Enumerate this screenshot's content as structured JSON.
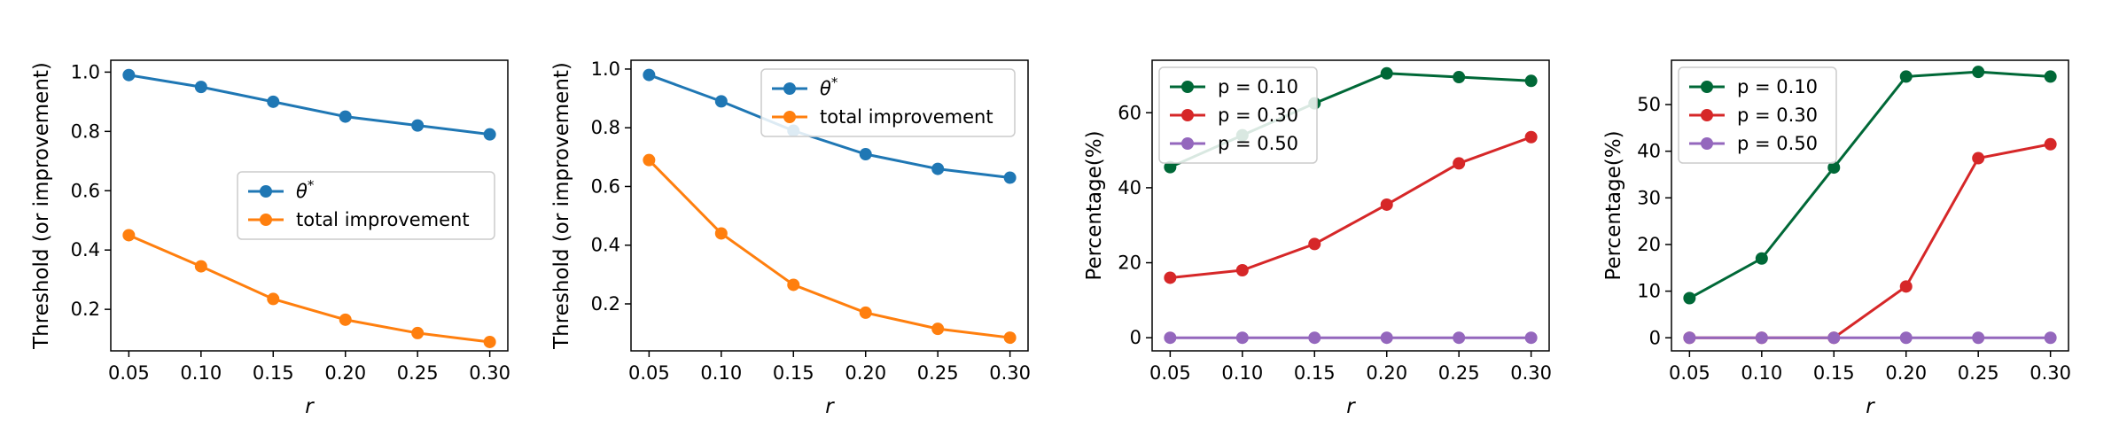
{
  "chart_data": [
    {
      "type": "line",
      "x": [
        0.05,
        0.1,
        0.15,
        0.2,
        0.25,
        0.3
      ],
      "x_tick_labels": [
        "0.05",
        "0.10",
        "0.15",
        "0.20",
        "0.25",
        "0.30"
      ],
      "xlabel": "r",
      "ylabel": "Threshold (or improvement)",
      "ylim": [
        0.06,
        1.04
      ],
      "y_ticks": [
        0.2,
        0.4,
        0.6,
        0.8,
        1.0
      ],
      "y_tick_labels": [
        "0.2",
        "0.4",
        "0.6",
        "0.8",
        "1.0"
      ],
      "legend_position": "center-right",
      "grid": false,
      "series": [
        {
          "name": "θ*",
          "name_main": "θ",
          "name_sup": "*",
          "color": "#1f77b4",
          "values": [
            0.99,
            0.95,
            0.9,
            0.85,
            0.82,
            0.79
          ]
        },
        {
          "name": "total improvement",
          "color": "#ff7f0e",
          "values": [
            0.45,
            0.345,
            0.235,
            0.165,
            0.12,
            0.09
          ]
        }
      ]
    },
    {
      "type": "line",
      "x": [
        0.05,
        0.1,
        0.15,
        0.2,
        0.25,
        0.3
      ],
      "x_tick_labels": [
        "0.05",
        "0.10",
        "0.15",
        "0.20",
        "0.25",
        "0.30"
      ],
      "xlabel": "r",
      "ylabel": "Threshold (or improvement)",
      "ylim": [
        0.04,
        1.03
      ],
      "y_ticks": [
        0.2,
        0.4,
        0.6,
        0.8,
        1.0
      ],
      "y_tick_labels": [
        "0.2",
        "0.4",
        "0.6",
        "0.8",
        "1.0"
      ],
      "legend_position": "upper-right",
      "grid": false,
      "series": [
        {
          "name": "θ*",
          "name_main": "θ",
          "name_sup": "*",
          "color": "#1f77b4",
          "values": [
            0.98,
            0.89,
            0.79,
            0.71,
            0.66,
            0.63
          ]
        },
        {
          "name": "total improvement",
          "color": "#ff7f0e",
          "values": [
            0.69,
            0.44,
            0.265,
            0.17,
            0.115,
            0.085
          ]
        }
      ]
    },
    {
      "type": "line",
      "x": [
        0.05,
        0.1,
        0.15,
        0.2,
        0.25,
        0.3
      ],
      "x_tick_labels": [
        "0.05",
        "0.10",
        "0.15",
        "0.20",
        "0.25",
        "0.30"
      ],
      "xlabel": "r",
      "ylabel": "Percentage(%)",
      "ylim": [
        -3.5,
        74
      ],
      "y_ticks": [
        0,
        20,
        40,
        60
      ],
      "y_tick_labels": [
        "0",
        "20",
        "40",
        "60"
      ],
      "legend_position": "upper-left",
      "grid": false,
      "series": [
        {
          "name": "p = 0.10",
          "color": "#006837",
          "values": [
            45.5,
            54,
            62.5,
            70.5,
            69.5,
            68.5
          ]
        },
        {
          "name": "p = 0.30",
          "color": "#d62728",
          "values": [
            16,
            18,
            25,
            35.5,
            46.5,
            53.5
          ]
        },
        {
          "name": "p = 0.50",
          "color": "#9467bd",
          "values": [
            0,
            0,
            0,
            0,
            0,
            0
          ]
        }
      ]
    },
    {
      "type": "line",
      "x": [
        0.05,
        0.1,
        0.15,
        0.2,
        0.25,
        0.3
      ],
      "x_tick_labels": [
        "0.05",
        "0.10",
        "0.15",
        "0.20",
        "0.25",
        "0.30"
      ],
      "xlabel": "r",
      "ylabel": "Percentage(%)",
      "ylim": [
        -2.8,
        59.5
      ],
      "y_ticks": [
        0,
        10,
        20,
        30,
        40,
        50
      ],
      "y_tick_labels": [
        "0",
        "10",
        "20",
        "30",
        "40",
        "50"
      ],
      "legend_position": "upper-left",
      "grid": false,
      "series": [
        {
          "name": "p = 0.10",
          "color": "#006837",
          "values": [
            8.5,
            17,
            36.5,
            56,
            57,
            56
          ]
        },
        {
          "name": "p = 0.30",
          "color": "#d62728",
          "values": [
            0,
            0,
            0,
            11,
            38.5,
            41.5
          ]
        },
        {
          "name": "p = 0.50",
          "color": "#9467bd",
          "values": [
            0,
            0,
            0,
            0,
            0,
            0
          ]
        }
      ]
    }
  ]
}
